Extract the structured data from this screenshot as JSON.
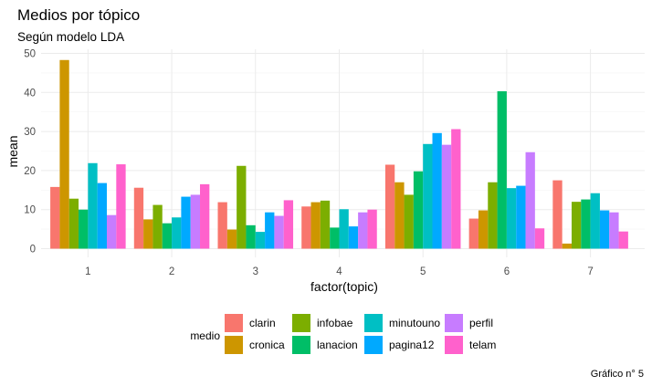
{
  "chart_data": {
    "type": "bar",
    "title": "Medios por tópico",
    "subtitle": "Según modelo LDA",
    "xlabel": "factor(topic)",
    "ylabel": "mean",
    "caption": "Gráfico n° 5",
    "categories": [
      "1",
      "2",
      "3",
      "4",
      "5",
      "6",
      "7"
    ],
    "ylim": [
      0,
      50
    ],
    "yticks": [
      0,
      10,
      20,
      30,
      40,
      50
    ],
    "grid": true,
    "legend": {
      "title": "medio",
      "placement": "bottom"
    },
    "series": [
      {
        "name": "clarin",
        "color": "#F8766D",
        "values": [
          15.8,
          15.6,
          11.9,
          10.8,
          21.5,
          7.7,
          17.5
        ]
      },
      {
        "name": "cronica",
        "color": "#CD9600",
        "values": [
          48.3,
          7.5,
          4.9,
          11.9,
          17.0,
          9.8,
          1.3
        ]
      },
      {
        "name": "infobae",
        "color": "#7CAE00",
        "values": [
          12.8,
          11.2,
          21.2,
          12.3,
          13.8,
          17.0,
          12.0
        ]
      },
      {
        "name": "lanacion",
        "color": "#00BE67",
        "values": [
          10.0,
          6.5,
          6.0,
          5.4,
          19.8,
          40.3,
          12.6
        ]
      },
      {
        "name": "minutouno",
        "color": "#00BFC4",
        "values": [
          21.9,
          8.0,
          4.3,
          10.1,
          26.8,
          15.5,
          14.2
        ]
      },
      {
        "name": "pagina12",
        "color": "#00A9FF",
        "values": [
          16.8,
          13.3,
          9.3,
          5.7,
          29.6,
          16.1,
          9.8
        ]
      },
      {
        "name": "perfil",
        "color": "#C77CFF",
        "values": [
          8.6,
          13.8,
          8.4,
          9.3,
          26.6,
          24.7,
          9.3
        ]
      },
      {
        "name": "telam",
        "color": "#FF61CC",
        "values": [
          21.6,
          16.5,
          12.4,
          10.0,
          30.6,
          5.2,
          4.4
        ]
      }
    ]
  }
}
